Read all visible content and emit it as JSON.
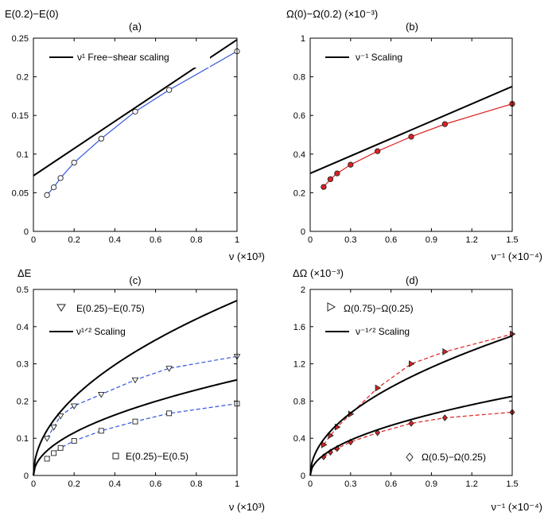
{
  "chart_data": [
    {
      "type": "line",
      "panel": "(a)",
      "ylabel": "E(0.2)−E(0)",
      "xlabel": "ν (×10³)",
      "xlim": [
        0,
        1
      ],
      "ylim": [
        0,
        0.25
      ],
      "xticks": [
        "0",
        "0.2",
        "0.4",
        "0.6",
        "0.8",
        "1"
      ],
      "xtick_values": [
        0,
        0.2,
        0.4,
        0.6,
        0.8,
        1
      ],
      "yticks": [
        "0",
        "0.05",
        "0.1",
        "0.15",
        "0.2",
        "0.25"
      ],
      "ytick_values": [
        0,
        0.05,
        0.1,
        0.15,
        0.2,
        0.25
      ],
      "legend": [
        {
          "label": "ν¹ Free−shear scaling",
          "style": "solid-black"
        }
      ],
      "series": [
        {
          "kind": "data",
          "marker": "circle-open",
          "color": "#3355dd",
          "x": [
            0.0667,
            0.1,
            0.1333,
            0.2,
            0.3333,
            0.5,
            0.6667,
            1.0
          ],
          "y": [
            0.047,
            0.057,
            0.069,
            0.089,
            0.12,
            0.155,
            0.183,
            0.233
          ]
        },
        {
          "kind": "scaling",
          "color": "#000000",
          "x": [
            0,
            1
          ],
          "y": [
            0.072,
            0.248
          ]
        }
      ]
    },
    {
      "type": "line",
      "panel": "(b)",
      "ylabel": "Ω(0)−Ω(0.2) (×10⁻³)",
      "xlabel": "ν⁻¹ (×10⁻⁴)",
      "xlim": [
        0,
        1.5
      ],
      "ylim": [
        0,
        1
      ],
      "xticks": [
        "0",
        "0.3",
        "0.6",
        "0.9",
        "1.2",
        "1.5"
      ],
      "xtick_values": [
        0,
        0.3,
        0.6,
        0.9,
        1.2,
        1.5
      ],
      "yticks": [
        "0",
        "0.2",
        "0.4",
        "0.6",
        "0.8",
        "1"
      ],
      "ytick_values": [
        0,
        0.2,
        0.4,
        0.6,
        0.8,
        1
      ],
      "legend": [
        {
          "label": "ν⁻¹ Scaling",
          "style": "solid-black"
        }
      ],
      "series": [
        {
          "kind": "data",
          "marker": "circle-filled",
          "color": "#dd2222",
          "x": [
            0.1,
            0.15,
            0.2,
            0.3,
            0.5,
            0.75,
            1.0,
            1.5
          ],
          "y": [
            0.23,
            0.27,
            0.3,
            0.345,
            0.415,
            0.49,
            0.555,
            0.66
          ]
        },
        {
          "kind": "scaling",
          "color": "#000000",
          "x": [
            0,
            1.5
          ],
          "y": [
            0.3,
            0.75
          ]
        }
      ]
    },
    {
      "type": "line",
      "panel": "(c)",
      "ylabel": "ΔE",
      "xlabel": "ν (×10³)",
      "xlim": [
        0,
        1
      ],
      "ylim": [
        0,
        0.5
      ],
      "xticks": [
        "0",
        "0.2",
        "0.4",
        "0.6",
        "0.8",
        "1"
      ],
      "xtick_values": [
        0,
        0.2,
        0.4,
        0.6,
        0.8,
        1
      ],
      "yticks": [
        "0",
        "0.1",
        "0.2",
        "0.3",
        "0.4",
        "0.5"
      ],
      "ytick_values": [
        0,
        0.1,
        0.2,
        0.3,
        0.4,
        0.5
      ],
      "legend": [
        {
          "label": "E(0.25)−E(0.75)",
          "style": "triangle-down-open"
        },
        {
          "label": "ν¹ᐟ² Scaling",
          "style": "solid-black"
        },
        {
          "label": "E(0.25)−E(0.5)",
          "style": "square-open"
        }
      ],
      "series": [
        {
          "kind": "data",
          "marker": "triangle-down-open",
          "color": "#3355dd",
          "dashed": true,
          "x": [
            0.0667,
            0.1,
            0.1333,
            0.2,
            0.3333,
            0.5,
            0.6667,
            1.0
          ],
          "y": [
            0.1,
            0.13,
            0.16,
            0.187,
            0.218,
            0.257,
            0.288,
            0.32
          ]
        },
        {
          "kind": "data",
          "marker": "square-open",
          "color": "#3355dd",
          "dashed": true,
          "x": [
            0.0667,
            0.1,
            0.1333,
            0.2,
            0.3333,
            0.5,
            0.6667,
            1.0
          ],
          "y": [
            0.045,
            0.06,
            0.074,
            0.093,
            0.12,
            0.145,
            0.167,
            0.193
          ]
        },
        {
          "kind": "sqrt-scaling",
          "color": "#000000",
          "coef": 0.47,
          "xmax": 1
        },
        {
          "kind": "sqrt-scaling",
          "color": "#000000",
          "coef": 0.257,
          "xmax": 1
        }
      ]
    },
    {
      "type": "line",
      "panel": "(d)",
      "ylabel": "ΔΩ (×10⁻³)",
      "xlabel": "ν⁻¹ (×10⁻⁴)",
      "xlim": [
        0,
        1.5
      ],
      "ylim": [
        0,
        2
      ],
      "xticks": [
        "0",
        "0.3",
        "0.6",
        "0.9",
        "1.2",
        "1.5"
      ],
      "xtick_values": [
        0,
        0.3,
        0.6,
        0.9,
        1.2,
        1.5
      ],
      "yticks": [
        "0",
        "0.4",
        "0.8",
        "1.2",
        "1.6",
        "2"
      ],
      "ytick_values": [
        0,
        0.4,
        0.8,
        1.2,
        1.6,
        2
      ],
      "legend": [
        {
          "label": "Ω(0.75)−Ω(0.25)",
          "style": "triangle-right-open"
        },
        {
          "label": "ν⁻¹ᐟ² Scaling",
          "style": "solid-black"
        },
        {
          "label": "Ω(0.5)−Ω(0.25)",
          "style": "diamond-open"
        }
      ],
      "series": [
        {
          "kind": "data",
          "marker": "triangle-right-filled",
          "color": "#dd2222",
          "dashed": true,
          "x": [
            0.1,
            0.15,
            0.2,
            0.3,
            0.5,
            0.75,
            1.0,
            1.5
          ],
          "y": [
            0.33,
            0.43,
            0.52,
            0.66,
            0.94,
            1.2,
            1.33,
            1.52
          ]
        },
        {
          "kind": "data",
          "marker": "diamond-filled",
          "color": "#dd2222",
          "dashed": true,
          "x": [
            0.1,
            0.15,
            0.2,
            0.3,
            0.5,
            0.75,
            1.0,
            1.5
          ],
          "y": [
            0.2,
            0.25,
            0.29,
            0.36,
            0.46,
            0.56,
            0.62,
            0.68
          ]
        },
        {
          "kind": "sqrt-scaling",
          "color": "#000000",
          "coef": 1.5,
          "xmax": 1.5
        },
        {
          "kind": "sqrt-scaling",
          "color": "#000000",
          "coef": 0.85,
          "xmax": 1.5
        }
      ]
    }
  ]
}
